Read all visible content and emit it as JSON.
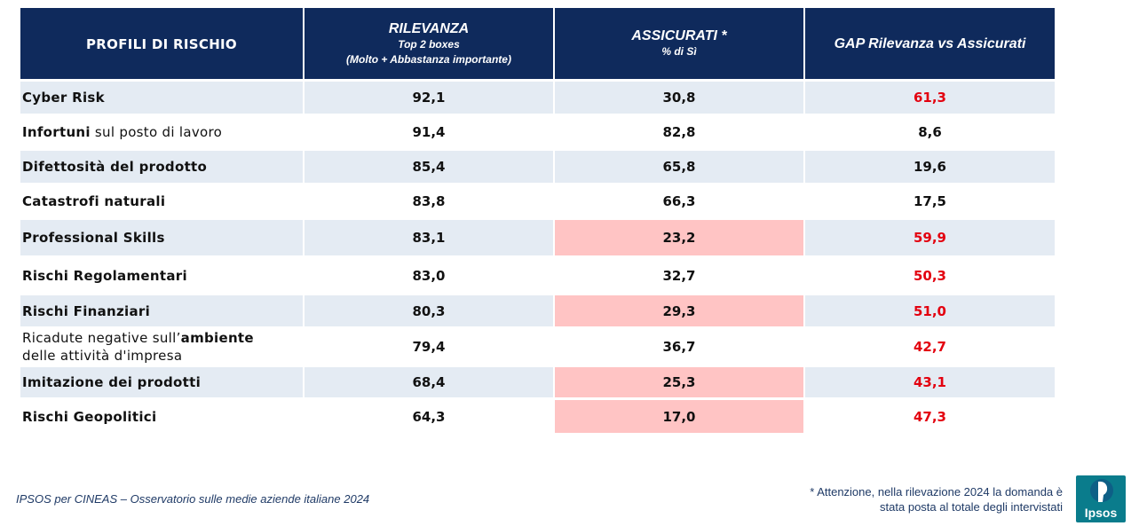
{
  "table": {
    "headers": {
      "profiles": "PROFILI DI RISCHIO",
      "relevance_title": "RILEVANZA",
      "relevance_sub1": "Top 2 boxes",
      "relevance_sub2": "(Molto + Abbastanza importante)",
      "insured_title": "ASSICURATI *",
      "insured_sub": "% di Sì",
      "gap_title": "GAP Rilevanza vs Assicurati"
    },
    "rows": [
      {
        "name_parts": [
          {
            "text": "Cyber Risk",
            "bold": true
          }
        ],
        "relevance": "92,1",
        "insured": "30,8",
        "gap": "61,3",
        "insured_highlight": false,
        "gap_red": true,
        "shaded": true
      },
      {
        "name_parts": [
          {
            "text": "Infortuni",
            "bold": true
          },
          {
            "text": " sul posto di lavoro",
            "bold": false
          }
        ],
        "relevance": "91,4",
        "insured": "82,8",
        "gap": "8,6",
        "insured_highlight": false,
        "gap_red": false,
        "shaded": false
      },
      {
        "name_parts": [
          {
            "text": "Difettosità del prodotto",
            "bold": true
          }
        ],
        "relevance": "85,4",
        "insured": "65,8",
        "gap": "19,6",
        "insured_highlight": false,
        "gap_red": false,
        "shaded": true
      },
      {
        "name_parts": [
          {
            "text": "Catastrofi naturali",
            "bold": true
          }
        ],
        "relevance": "83,8",
        "insured": "66,3",
        "gap": "17,5",
        "insured_highlight": false,
        "gap_red": false,
        "shaded": false
      },
      {
        "name_parts": [
          {
            "text": "Professional Skills",
            "bold": true
          }
        ],
        "relevance": "83,1",
        "insured": "23,2",
        "gap": "59,9",
        "insured_highlight": true,
        "gap_red": true,
        "shaded": true
      },
      {
        "name_parts": [
          {
            "text": "Rischi Regolamentari",
            "bold": true
          }
        ],
        "relevance": "83,0",
        "insured": "32,7",
        "gap": "50,3",
        "insured_highlight": false,
        "gap_red": true,
        "shaded": false
      },
      {
        "name_parts": [
          {
            "text": "Rischi Finanziari",
            "bold": true
          }
        ],
        "relevance": "80,3",
        "insured": "29,3",
        "gap": "51,0",
        "insured_highlight": true,
        "gap_red": true,
        "shaded": true
      },
      {
        "name_parts": [
          {
            "text": "Ricadute negative sull’",
            "bold": false
          },
          {
            "text": "ambiente",
            "bold": true
          },
          {
            "text": "\ndelle attività d'impresa",
            "bold": false
          }
        ],
        "relevance": "79,4",
        "insured": "36,7",
        "gap": "42,7",
        "insured_highlight": false,
        "gap_red": true,
        "shaded": false
      },
      {
        "name_parts": [
          {
            "text": "Imitazione dei prodotti",
            "bold": true
          }
        ],
        "relevance": "68,4",
        "insured": "25,3",
        "gap": "43,1",
        "insured_highlight": true,
        "gap_red": true,
        "shaded": true
      },
      {
        "name_parts": [
          {
            "text": "Rischi Geopolitici",
            "bold": true
          }
        ],
        "relevance": "64,3",
        "insured": "17,0",
        "gap": "47,3",
        "insured_highlight": true,
        "gap_red": true,
        "shaded": false
      }
    ]
  },
  "footer": {
    "source": "IPSOS per CINEAS – Osservatorio sulle medie aziende italiane 2024",
    "note_line1": "* Attenzione, nella rilevazione 2024 la domanda è",
    "note_line2": "stata posta al totale degli intervistati",
    "logo_text": "Ipsos"
  },
  "colors": {
    "header_bg": "#0f2a5c",
    "shade_row": "#e4ebf3",
    "highlight_pink": "#ffc4c4",
    "gap_red": "#e3000f",
    "logo_bg": "#0a7c8c"
  },
  "icons": {
    "logo": "ipsos-logo-icon"
  }
}
